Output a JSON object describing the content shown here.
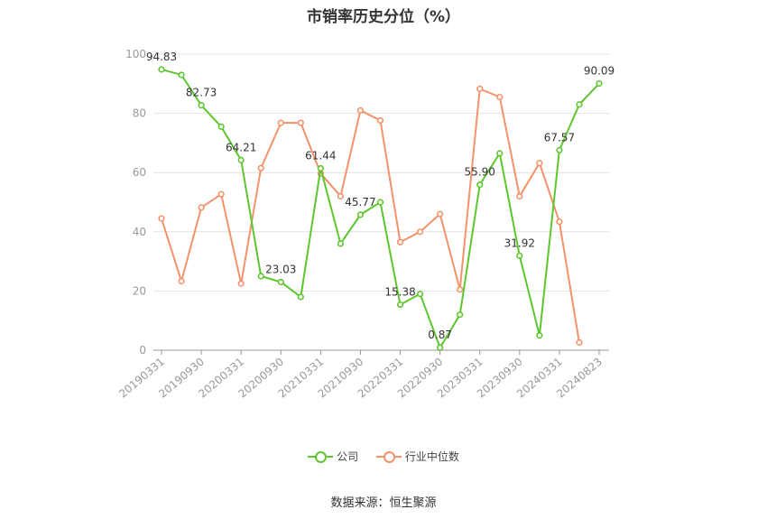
{
  "colors": {
    "company": "#5ec62e",
    "industry": "#f4926a"
  },
  "chart_data": {
    "type": "line",
    "title": "市销率历史分位（%）",
    "xlabel": "",
    "ylabel": "",
    "ylim": [
      0,
      100
    ],
    "yticks": [
      0,
      20,
      40,
      60,
      80,
      100
    ],
    "x_tick_labels": [
      "20190331",
      "20190930",
      "20200331",
      "20200930",
      "20210331",
      "20210930",
      "20220331",
      "20220930",
      "20230331",
      "20230930",
      "20240331",
      "20240823"
    ],
    "grid": true,
    "legend_position": "bottom",
    "series": [
      {
        "name": "公司",
        "values": [
          94.83,
          93.0,
          82.73,
          75.5,
          64.21,
          25.0,
          23.03,
          18.0,
          61.44,
          36.0,
          45.77,
          50.0,
          15.38,
          19.0,
          0.87,
          12.0,
          55.9,
          66.5,
          31.92,
          5.0,
          67.57,
          83.0,
          90.09
        ],
        "labels": [
          "94.83",
          "",
          "82.73",
          "",
          "64.21",
          "",
          "23.03",
          "",
          "61.44",
          "",
          "45.77",
          "",
          "15.38",
          "",
          "0.87",
          "",
          "55.90",
          "",
          "31.92",
          "",
          "67.57",
          "",
          "90.09"
        ]
      },
      {
        "name": "行业中位数",
        "values": [
          44.5,
          23.3,
          48.2,
          52.7,
          22.5,
          61.5,
          76.8,
          76.8,
          59.7,
          52.0,
          81.0,
          77.6,
          36.5,
          40.0,
          46.0,
          20.5,
          88.3,
          85.5,
          52.0,
          63.2,
          43.4,
          2.6,
          null
        ]
      }
    ]
  },
  "footer": {
    "source": "数据来源：恒生聚源"
  }
}
